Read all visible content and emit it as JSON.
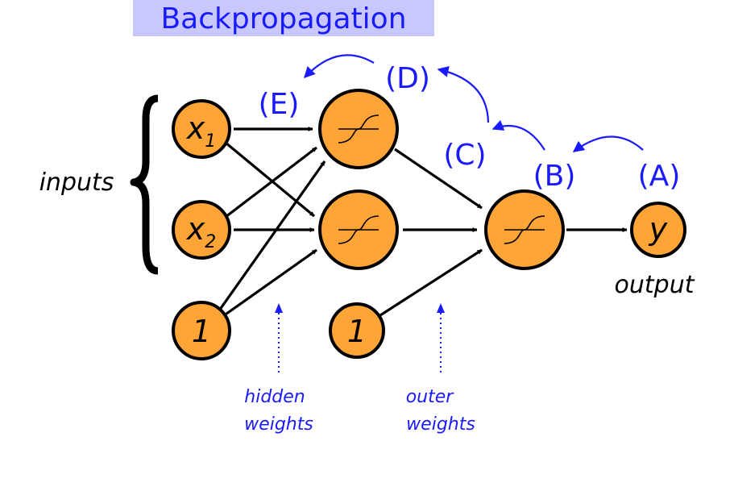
{
  "title": "Backpropagation",
  "inputs_label": "inputs",
  "output_label": "output",
  "nodes": {
    "x1": {
      "main": "x",
      "sub": "1"
    },
    "x2": {
      "main": "x",
      "sub": "2"
    },
    "bias_hidden": {
      "main": "1"
    },
    "bias_outer": {
      "main": "1"
    },
    "y": {
      "main": "y"
    }
  },
  "steps": {
    "a": "(A)",
    "b": "(B)",
    "c": "(C)",
    "d": "(D)",
    "e": "(E)"
  },
  "weights": {
    "hidden": [
      "hidden",
      "weights"
    ],
    "outer": [
      "outer",
      "weights"
    ]
  },
  "colors": {
    "node_fill": "#ffa436",
    "title_background": "#c8c8ff",
    "accent_blue": "#1a1aff"
  }
}
